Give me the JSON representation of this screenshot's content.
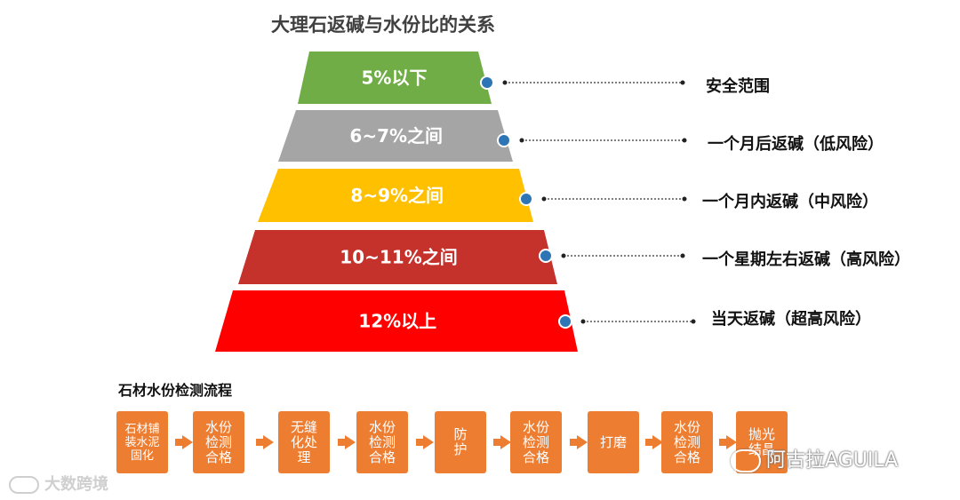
{
  "title": "大理石返碱与水份比的关系",
  "pyramid": [
    {
      "label": "5%以下",
      "desc": "安全范围",
      "color": "#70AD47"
    },
    {
      "label": "6~7%之间",
      "desc": "一个月后返碱（低风险）",
      "color": "#A5A5A5"
    },
    {
      "label": "8~9%之间",
      "desc": "一个月内返碱（中风险）",
      "color": "#FFC000"
    },
    {
      "label": "10~11%之间",
      "desc": "一个星期左右返碱（高风险）",
      "color": "#C5312B"
    },
    {
      "label": "12%以上",
      "desc": "当天返碱（超高风险）",
      "color": "#FF0000"
    }
  ],
  "flow": {
    "title": "石材水份检测流程",
    "steps": [
      "石材铺\n装水泥\n固化",
      "水份\n检测\n合格",
      "无缝\n化处\n理",
      "水份\n检测\n合格",
      "防\n护",
      "水份\n检测\n合格",
      "打磨",
      "水份\n检测\n合格",
      "抛光\n结晶"
    ]
  },
  "watermarks": {
    "left": "大数跨境",
    "right": "阿古拉AGUILA"
  }
}
